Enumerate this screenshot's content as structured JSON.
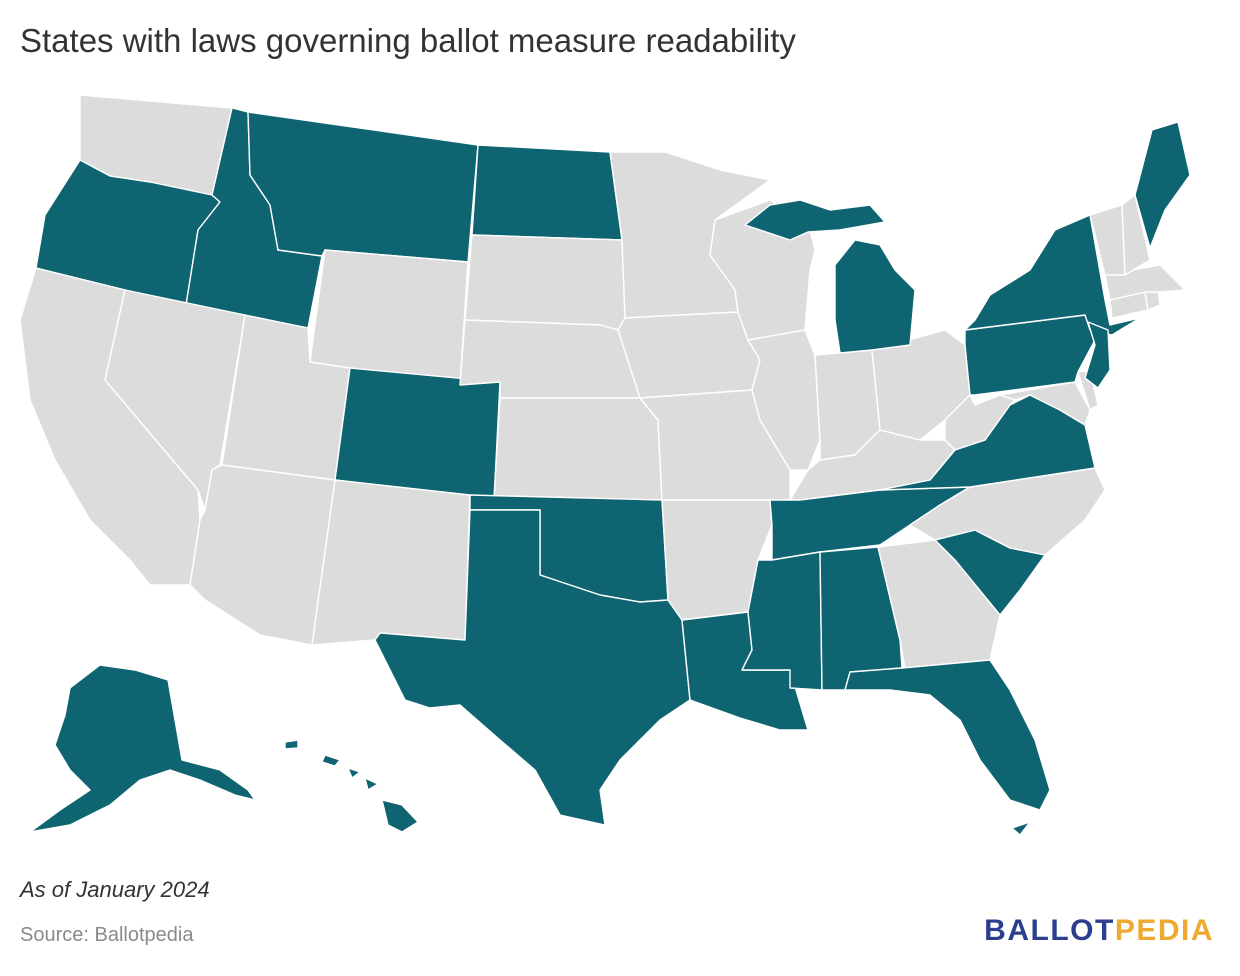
{
  "title": "States with laws governing ballot measure readability",
  "note": "As of January 2024",
  "source": "Source: Ballotpedia",
  "logo": {
    "part1": "BALLOT",
    "part2": "PEDIA"
  },
  "colors": {
    "has_law": "#0e6470",
    "no_law": "#dcdcdc",
    "border": "#ffffff",
    "logo_blue": "#2c3f8f",
    "logo_gold": "#f0a930"
  },
  "states_with_laws": [
    "AK",
    "AL",
    "CO",
    "FL",
    "HI",
    "ID",
    "LA",
    "ME",
    "MI",
    "MS",
    "MT",
    "ND",
    "NJ",
    "NY",
    "OK",
    "OR",
    "PA",
    "SC",
    "TN",
    "TX",
    "VA"
  ],
  "states_without_laws": [
    "WA",
    "CA",
    "NV",
    "UT",
    "AZ",
    "NM",
    "WY",
    "SD",
    "NE",
    "KS",
    "MN",
    "IA",
    "MO",
    "AR",
    "WI",
    "IL",
    "IN",
    "KY",
    "OH",
    "WV",
    "NC",
    "GA",
    "MD",
    "DE",
    "CT",
    "RI",
    "MA",
    "VT",
    "NH"
  ]
}
